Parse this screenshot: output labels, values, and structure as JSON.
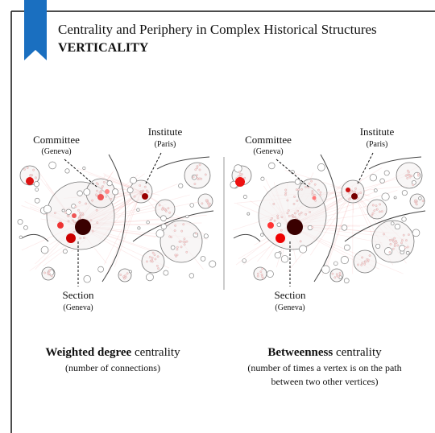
{
  "header": {
    "title": "Centrality and Periphery in Complex Historical Structures",
    "subtitle": "VERTICALITY"
  },
  "panels": [
    {
      "committee": "Committee",
      "committee_place": "(Geneva)",
      "institute": "Institute",
      "institute_place": "(Paris)",
      "section": "Section",
      "section_place": "(Geneva)",
      "caption_bold": "Weighted degree",
      "caption_rest": " centrality",
      "note": [
        "(number of connections)"
      ]
    },
    {
      "committee": "Committee",
      "committee_place": "(Geneva)",
      "institute": "Institute",
      "institute_place": "(Paris)",
      "section": "Section",
      "section_place": "(Geneva)",
      "caption_bold": "Betweenness",
      "caption_rest": " centrality",
      "note": [
        "(number of times a vertex is on the path",
        "between two other vertices)"
      ]
    }
  ]
}
